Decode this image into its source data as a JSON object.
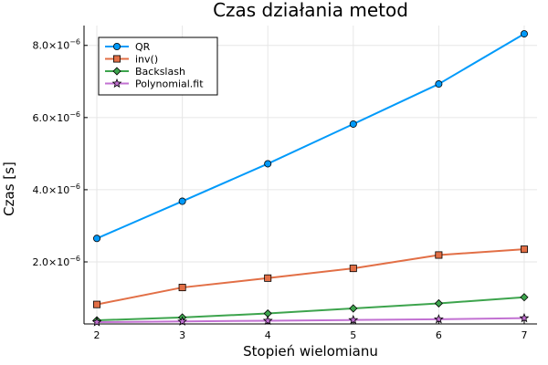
{
  "chart_data": {
    "type": "line",
    "title": "Czas działania metod",
    "xlabel": "Stopień wielomianu",
    "ylabel": "Czas [s]",
    "x": [
      2,
      3,
      4,
      5,
      6,
      7
    ],
    "xlim": [
      1.85,
      7.15
    ],
    "ylim": [
      2.8e-07,
      8.55e-06
    ],
    "x_ticks": [
      {
        "value": 2,
        "label": "2"
      },
      {
        "value": 3,
        "label": "3"
      },
      {
        "value": 4,
        "label": "4"
      },
      {
        "value": 5,
        "label": "5"
      },
      {
        "value": 6,
        "label": "6"
      },
      {
        "value": 7,
        "label": "7"
      }
    ],
    "y_ticks": [
      {
        "value": 2e-06,
        "mantissa": "2.0×10",
        "exponent": "−6"
      },
      {
        "value": 4e-06,
        "mantissa": "4.0×10",
        "exponent": "−6"
      },
      {
        "value": 6e-06,
        "mantissa": "6.0×10",
        "exponent": "−6"
      },
      {
        "value": 8e-06,
        "mantissa": "8.0×10",
        "exponent": "−6"
      }
    ],
    "grid": true,
    "legend_position": "top-left",
    "series": [
      {
        "name": "QR",
        "color": "#009AFA",
        "marker": "circle",
        "values": [
          2.65e-06,
          3.68e-06,
          4.72e-06,
          5.82e-06,
          6.93e-06,
          8.32e-06
        ]
      },
      {
        "name": "inv()",
        "color": "#E26F46",
        "marker": "square",
        "values": [
          8.2e-07,
          1.29e-06,
          1.55e-06,
          1.82e-06,
          2.19e-06,
          2.35e-06
        ]
      },
      {
        "name": "Backslash",
        "color": "#3DA44D",
        "marker": "diamond",
        "values": [
          3.8e-07,
          4.6e-07,
          5.7e-07,
          7.1e-07,
          8.5e-07,
          1.02e-06
        ]
      },
      {
        "name": "Polynomial.fit",
        "color": "#C271D2",
        "marker": "star",
        "values": [
          3.3e-07,
          3.5e-07,
          3.7e-07,
          3.9e-07,
          4.1e-07,
          4.4e-07
        ]
      }
    ]
  }
}
